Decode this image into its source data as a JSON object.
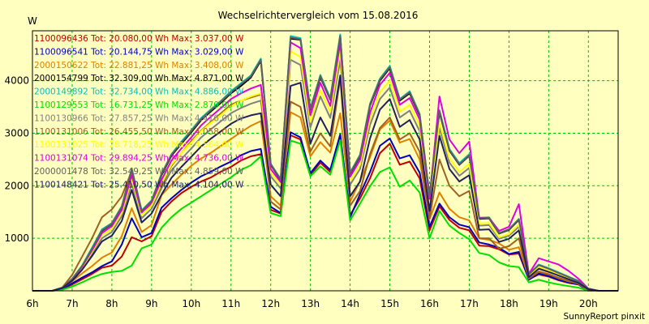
{
  "chart_data": {
    "type": "line",
    "title": "Wechselrichtervergleich vom 15.08.2016",
    "ylabel": "W",
    "footer": "SunnyReport pinxit",
    "x_ticks": [
      "6h",
      "7h",
      "8h",
      "9h",
      "10h",
      "11h",
      "12h",
      "13h",
      "14h",
      "15h",
      "16h",
      "17h",
      "18h",
      "19h",
      "20h"
    ],
    "y_ticks": [
      1000,
      2000,
      3000,
      4000
    ],
    "xlim": [
      6,
      20.75
    ],
    "ylim": [
      0,
      4950
    ],
    "grid": true,
    "legend_placement": "top-left",
    "colors": {
      "background": "#ffffc0",
      "plot_border": "#000000",
      "grid": "#00c000"
    },
    "x": [
      6.0,
      6.5,
      6.75,
      7.0,
      7.25,
      7.5,
      7.75,
      8.0,
      8.25,
      8.5,
      8.75,
      9.0,
      9.25,
      9.5,
      9.75,
      10.0,
      10.25,
      10.5,
      10.75,
      11.0,
      11.25,
      11.5,
      11.75,
      12.0,
      12.25,
      12.5,
      12.75,
      13.0,
      13.25,
      13.5,
      13.75,
      14.0,
      14.25,
      14.5,
      14.75,
      15.0,
      15.25,
      15.5,
      15.75,
      16.0,
      16.25,
      16.5,
      16.75,
      17.0,
      17.25,
      17.5,
      17.75,
      18.0,
      18.25,
      18.5,
      18.75,
      19.0,
      19.25,
      19.5,
      19.75,
      20.0,
      20.25,
      20.5,
      20.75
    ],
    "series": [
      {
        "name": "1100096436 Tot: 20.080,00 Wh Max: 3.037,00 W",
        "color": "#c00000",
        "values": [
          0,
          0,
          30,
          120,
          220,
          320,
          440,
          480,
          650,
          1020,
          940,
          1040,
          1500,
          1700,
          1860,
          1980,
          2080,
          2160,
          2270,
          2360,
          2480,
          2560,
          2600,
          1540,
          1470,
          2960,
          2880,
          2200,
          2440,
          2260,
          2940,
          1440,
          1760,
          2140,
          2620,
          2800,
          2400,
          2460,
          2140,
          1150,
          1610,
          1350,
          1200,
          1150,
          860,
          850,
          790,
          690,
          710,
          220,
          310,
          270,
          200,
          150,
          120,
          0,
          0,
          0,
          0
        ]
      },
      {
        "name": "1100096541 Tot: 20.144,75 Wh Max: 3.029,00 W",
        "color": "#0000c0",
        "values": [
          0,
          0,
          40,
          140,
          250,
          350,
          470,
          560,
          880,
          1380,
          1020,
          1100,
          1580,
          1760,
          1920,
          2060,
          2180,
          2270,
          2370,
          2460,
          2580,
          2660,
          2700,
          1600,
          1480,
          3020,
          2920,
          2240,
          2480,
          2300,
          2980,
          1400,
          1840,
          2260,
          2760,
          2900,
          2520,
          2580,
          2250,
          1220,
          1660,
          1400,
          1260,
          1210,
          920,
          880,
          820,
          700,
          740,
          210,
          330,
          280,
          210,
          160,
          120,
          0,
          0,
          0,
          0
        ]
      },
      {
        "name": "2000150622 Tot: 22.881,25 Wh Max: 3.408,00 W",
        "color": "#e08000",
        "values": [
          0,
          0,
          50,
          180,
          330,
          470,
          630,
          730,
          1040,
          1570,
          1120,
          1250,
          1820,
          2020,
          2210,
          2380,
          2520,
          2630,
          2760,
          2890,
          3020,
          3140,
          3230,
          1800,
          1620,
          3400,
          3300,
          2560,
          2830,
          2630,
          3380,
          1700,
          2090,
          2540,
          3070,
          3240,
          2820,
          2890,
          2500,
          1360,
          1870,
          1560,
          1400,
          1340,
          1000,
          970,
          900,
          780,
          830,
          250,
          370,
          320,
          240,
          180,
          140,
          0,
          0,
          0,
          0
        ]
      },
      {
        "name": "2000154799 Tot: 32.309,00 Wh Max: 4.871,00 W",
        "color": "#000000",
        "values": [
          0,
          0,
          60,
          220,
          470,
          800,
          1140,
          1270,
          1590,
          2300,
          1510,
          1700,
          2200,
          2570,
          2800,
          3020,
          3250,
          3420,
          3580,
          3760,
          3900,
          4060,
          4380,
          2400,
          2110,
          4800,
          4780,
          3450,
          4070,
          3640,
          4860,
          2230,
          2560,
          3530,
          4000,
          4240,
          3620,
          3760,
          3340,
          1800,
          3400,
          2670,
          2400,
          2570,
          1370,
          1380,
          1090,
          1160,
          1350,
          310,
          490,
          420,
          340,
          260,
          180,
          40,
          0,
          0,
          0
        ]
      },
      {
        "name": "2000149892 Tot: 32.734,00 Wh Max: 4.886,00 W",
        "color": "#00c0c0",
        "values": [
          0,
          0,
          60,
          230,
          480,
          820,
          1170,
          1290,
          1610,
          2330,
          1530,
          1720,
          2230,
          2600,
          2840,
          3060,
          3290,
          3460,
          3620,
          3800,
          3950,
          4100,
          4420,
          2420,
          2130,
          4850,
          4810,
          3470,
          4110,
          3670,
          4880,
          2250,
          2590,
          3560,
          4040,
          4280,
          3650,
          3800,
          3370,
          1820,
          3440,
          2700,
          2430,
          2600,
          1390,
          1400,
          1100,
          1170,
          1370,
          320,
          500,
          430,
          350,
          270,
          190,
          40,
          0,
          0,
          0
        ]
      },
      {
        "name": "1100129553 Tot: 16.731,25 Wh Max: 2.870,00 W",
        "color": "#00e000",
        "values": [
          0,
          0,
          20,
          80,
          160,
          250,
          320,
          360,
          380,
          480,
          810,
          880,
          1200,
          1400,
          1560,
          1680,
          1800,
          1920,
          2040,
          2160,
          2300,
          2390,
          2560,
          1480,
          1420,
          2860,
          2800,
          2180,
          2370,
          2210,
          2870,
          1340,
          1660,
          1990,
          2260,
          2350,
          1980,
          2100,
          1870,
          1000,
          1520,
          1240,
          1100,
          980,
          720,
          680,
          540,
          470,
          450,
          160,
          210,
          160,
          120,
          90,
          60,
          0,
          0,
          0,
          0
        ]
      },
      {
        "name": "1100130966 Tot: 27.857,25 Wh Max: 4.416,00 W",
        "color": "#808080",
        "values": [
          0,
          0,
          50,
          200,
          420,
          700,
          1000,
          1120,
          1420,
          2040,
          1380,
          1560,
          1950,
          2290,
          2510,
          2710,
          2920,
          3080,
          3230,
          3380,
          3480,
          3560,
          3620,
          2180,
          1950,
          4400,
          4300,
          3110,
          3700,
          3290,
          4400,
          2020,
          2320,
          3160,
          3650,
          3870,
          3300,
          3430,
          3040,
          1620,
          3100,
          2440,
          2190,
          2340,
          1240,
          1250,
          990,
          1050,
          1220,
          280,
          440,
          380,
          300,
          230,
          160,
          30,
          0,
          0,
          0
        ]
      },
      {
        "name": "1100131006 Tot: 26.455,50 Wh Max: 4.058,00 W",
        "color": "#a06020",
        "values": [
          0,
          0,
          60,
          300,
          650,
          1000,
          1400,
          1550,
          1800,
          2280,
          1500,
          1650,
          2000,
          2380,
          2620,
          2850,
          3050,
          3220,
          3380,
          3540,
          3620,
          3680,
          3740,
          1700,
          1550,
          3600,
          3500,
          2650,
          3000,
          2750,
          4050,
          1620,
          1900,
          2600,
          3100,
          3300,
          2880,
          3000,
          2650,
          1380,
          2500,
          2000,
          1800,
          1900,
          1000,
          1000,
          800,
          850,
          1000,
          230,
          360,
          310,
          250,
          190,
          130,
          20,
          0,
          0,
          0
        ]
      },
      {
        "name": "1100131025 Tot: 28.718,25 Wh Max: 4.564,00 W",
        "color": "#ffff00",
        "values": [
          0,
          0,
          50,
          210,
          440,
          740,
          1060,
          1180,
          1480,
          2130,
          1440,
          1620,
          2040,
          2400,
          2620,
          2820,
          3040,
          3200,
          3350,
          3510,
          3620,
          3700,
          3760,
          2250,
          2010,
          4560,
          4450,
          3220,
          3820,
          3400,
          4560,
          2090,
          2400,
          3270,
          3780,
          4000,
          3410,
          3540,
          3140,
          1680,
          3200,
          2520,
          2260,
          2420,
          1280,
          1290,
          1020,
          1080,
          1260,
          290,
          460,
          390,
          310,
          240,
          170,
          30,
          0,
          0,
          0
        ]
      },
      {
        "name": "1100131074 Tot: 29.894,25 Wh Max: 4.736,00 W",
        "color": "#e000e0",
        "values": [
          0,
          0,
          50,
          220,
          460,
          770,
          1100,
          1230,
          1540,
          2200,
          1490,
          1680,
          2110,
          2480,
          2710,
          2920,
          3150,
          3320,
          3480,
          3650,
          3760,
          3850,
          3920,
          2320,
          2070,
          4730,
          4620,
          3340,
          3960,
          3520,
          4730,
          2170,
          2490,
          3390,
          3920,
          4150,
          3540,
          3670,
          3260,
          1750,
          3700,
          2880,
          2620,
          2840,
          1390,
          1390,
          1140,
          1220,
          1650,
          320,
          620,
          560,
          500,
          380,
          230,
          40,
          0,
          0,
          0
        ]
      },
      {
        "name": "2000001478 Tot: 32.549,25 Wh Max: 4.859,00 W",
        "color": "#606060",
        "values": [
          0,
          0,
          60,
          220,
          470,
          800,
          1150,
          1280,
          1600,
          2320,
          1520,
          1710,
          2220,
          2590,
          2820,
          3040,
          3270,
          3440,
          3600,
          3780,
          3930,
          4080,
          4400,
          2410,
          2120,
          4820,
          4790,
          3460,
          4090,
          3650,
          4850,
          2240,
          2580,
          3550,
          4020,
          4260,
          3640,
          3780,
          3360,
          1810,
          3420,
          2680,
          2410,
          2580,
          1380,
          1390,
          1100,
          1170,
          1360,
          310,
          490,
          420,
          340,
          260,
          180,
          40,
          0,
          0,
          0
        ]
      },
      {
        "name": "1100148421 Tot: 25.410,50 Wh Max: 4.104,00 W",
        "color": "#202060",
        "values": [
          0,
          0,
          50,
          190,
          400,
          660,
          940,
          1050,
          1330,
          1920,
          1300,
          1470,
          1830,
          2150,
          2360,
          2550,
          2750,
          2900,
          3040,
          3180,
          3280,
          3340,
          3380,
          2020,
          1800,
          3900,
          3960,
          2800,
          3300,
          2950,
          4100,
          1800,
          2080,
          2900,
          3450,
          3650,
          3120,
          3250,
          2880,
          1520,
          2950,
          2320,
          2080,
          2200,
          1160,
          1170,
          930,
          990,
          1150,
          260,
          420,
          360,
          290,
          220,
          150,
          30,
          0,
          0,
          0
        ]
      }
    ]
  }
}
